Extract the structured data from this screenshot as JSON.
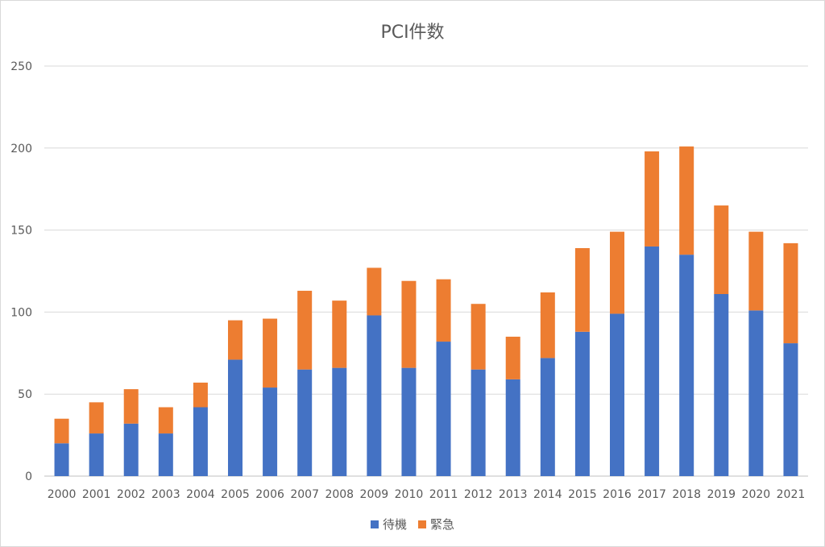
{
  "chart_data": {
    "type": "bar",
    "stacked": true,
    "title": "PCI件数",
    "xlabel": "",
    "ylabel": "",
    "ylim": [
      0,
      250
    ],
    "yticks": [
      0,
      50,
      100,
      150,
      200,
      250
    ],
    "grid": true,
    "legend_position": "bottom",
    "categories": [
      "2000",
      "2001",
      "2002",
      "2003",
      "2004",
      "2005",
      "2006",
      "2007",
      "2008",
      "2009",
      "2010",
      "2011",
      "2012",
      "2013",
      "2014",
      "2015",
      "2016",
      "2017",
      "2018",
      "2019",
      "2020",
      "2021"
    ],
    "series": [
      {
        "name": "待機",
        "color": "#4472c4",
        "values": [
          20,
          26,
          32,
          26,
          42,
          71,
          54,
          65,
          66,
          98,
          66,
          82,
          65,
          59,
          72,
          88,
          99,
          140,
          135,
          111,
          101,
          81
        ]
      },
      {
        "name": "緊急",
        "color": "#ed7d31",
        "values": [
          15,
          19,
          21,
          16,
          15,
          24,
          42,
          48,
          41,
          29,
          53,
          38,
          40,
          26,
          40,
          51,
          50,
          58,
          66,
          54,
          48,
          61
        ]
      }
    ]
  }
}
